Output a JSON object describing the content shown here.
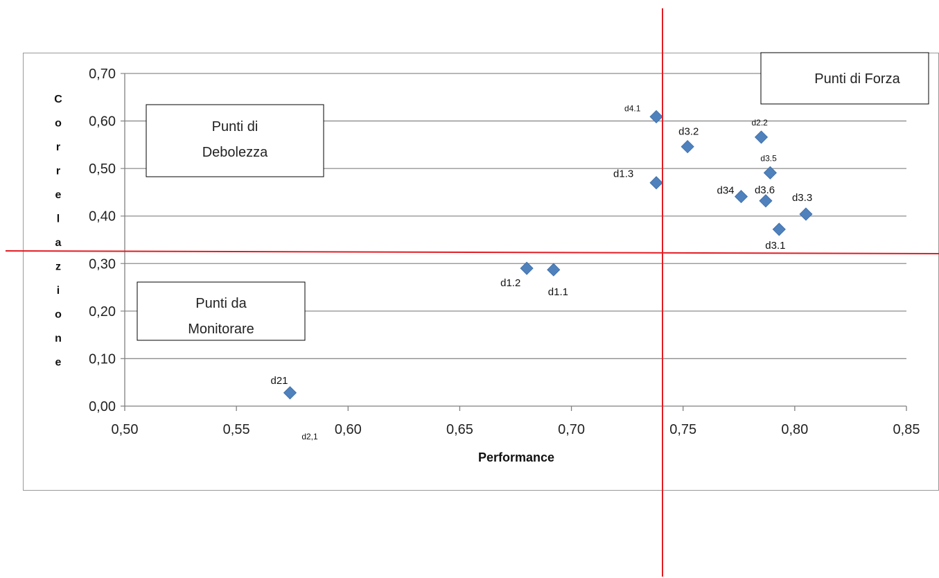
{
  "chart_data": {
    "type": "scatter",
    "xlabel": "Performance",
    "ylabel": "Correlazione",
    "xlim": [
      0.5,
      0.85
    ],
    "ylim": [
      0.0,
      0.7
    ],
    "x_ticks": [
      "0,50",
      "0,55",
      "0,60",
      "0,65",
      "0,70",
      "0,75",
      "0,80",
      "0,85"
    ],
    "y_ticks": [
      "0,00",
      "0,10",
      "0,20",
      "0,30",
      "0,40",
      "0,50",
      "0,60",
      "0,70"
    ],
    "grid": "horizontal",
    "marker_color": "#4F81BD",
    "reference_line_color": "#E31B23",
    "points": [
      {
        "label": "d4.1",
        "x": 0.738,
        "y": 0.609
      },
      {
        "label": "d3.2",
        "x": 0.752,
        "y": 0.546
      },
      {
        "label": "d2.2",
        "x": 0.785,
        "y": 0.566
      },
      {
        "label": "d3.5",
        "x": 0.789,
        "y": 0.491
      },
      {
        "label": "d1.3",
        "x": 0.738,
        "y": 0.47
      },
      {
        "label": "d34",
        "x": 0.776,
        "y": 0.441
      },
      {
        "label": "d3.6",
        "x": 0.787,
        "y": 0.432
      },
      {
        "label": "d3.3",
        "x": 0.805,
        "y": 0.404
      },
      {
        "label": "d3.1",
        "x": 0.793,
        "y": 0.372
      },
      {
        "label": "d1.2",
        "x": 0.68,
        "y": 0.29
      },
      {
        "label": "d1.1",
        "x": 0.692,
        "y": 0.287
      },
      {
        "label": "d21",
        "x": 0.574,
        "y": 0.028
      }
    ],
    "annotations": {
      "d2_1": "d2,1",
      "strength": "Punti di Forza",
      "weakness_line1": "Punti di",
      "weakness_line2": "Debolezza",
      "monitor_line1": "Punti da",
      "monitor_line2": "Monitorare"
    },
    "ylabel_chars": [
      "C",
      "o",
      "r",
      "r",
      "e",
      "l",
      "a",
      "z",
      "i",
      "o",
      "n",
      "e"
    ]
  }
}
